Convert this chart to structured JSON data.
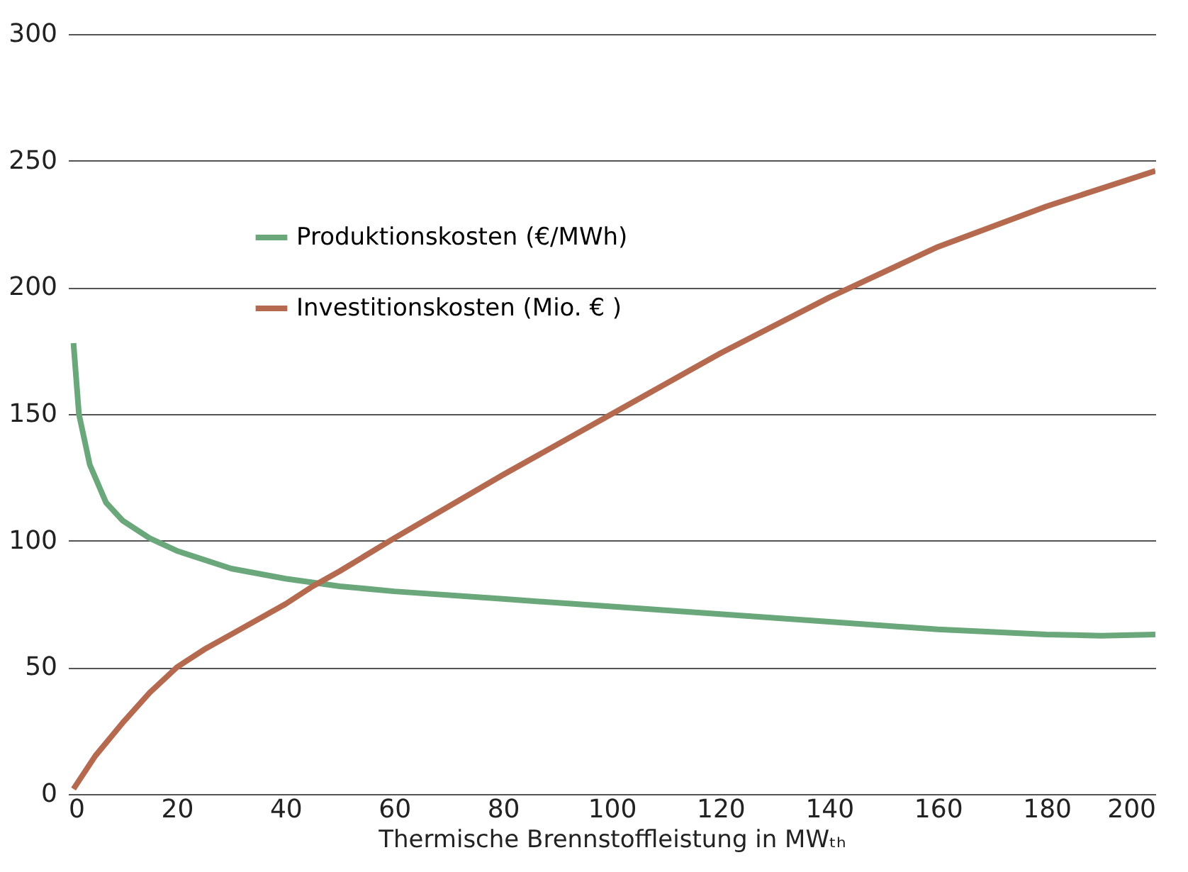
{
  "chart_data": {
    "type": "line",
    "xlabel": "Thermische Brennstoffleistung in MWₜₕ",
    "xlim": [
      0,
      200
    ],
    "xticks": [
      0,
      20,
      40,
      60,
      80,
      100,
      120,
      140,
      160,
      180,
      200
    ],
    "ylim": [
      0,
      300
    ],
    "yticks": [
      0,
      50,
      100,
      150,
      200,
      250,
      300
    ],
    "grid": "y",
    "legend": "top left",
    "line_style": "solid",
    "series": [
      {
        "name": "Produktionskosten (€/MWh)",
        "color": "#6aa77a",
        "x": [
          1,
          2,
          4,
          7,
          10,
          15,
          20,
          30,
          40,
          50,
          60,
          80,
          100,
          120,
          140,
          160,
          180,
          190,
          200
        ],
        "values": [
          178,
          150,
          130,
          115,
          108,
          101,
          96,
          89,
          85,
          82,
          80,
          77,
          74,
          71,
          68,
          65,
          63,
          62.5,
          63
        ]
      },
      {
        "name": "Investitionskosten (Mio. € )",
        "color": "#b5694f",
        "x": [
          1,
          5,
          10,
          15,
          20,
          25,
          30,
          40,
          45,
          50,
          60,
          80,
          100,
          120,
          140,
          160,
          180,
          200
        ],
        "values": [
          2,
          15,
          28,
          40,
          50,
          57,
          63,
          75,
          82,
          88,
          101,
          126,
          150,
          174,
          196,
          216,
          232,
          246
        ]
      }
    ]
  }
}
